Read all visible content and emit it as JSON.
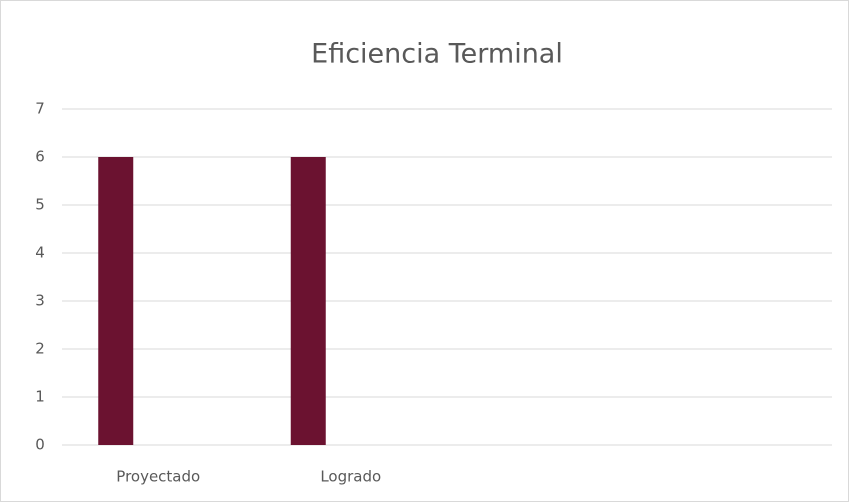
{
  "chart_data": {
    "type": "bar",
    "title": "Eficiencia Terminal",
    "categories": [
      "Proyectado",
      "Logrado",
      null,
      null
    ],
    "values": [
      6,
      6,
      null,
      null
    ],
    "color": "#6b1230",
    "ylim": [
      0,
      7
    ],
    "yticks": [
      0,
      1,
      2,
      3,
      4,
      5,
      6,
      7
    ],
    "grid": true
  }
}
